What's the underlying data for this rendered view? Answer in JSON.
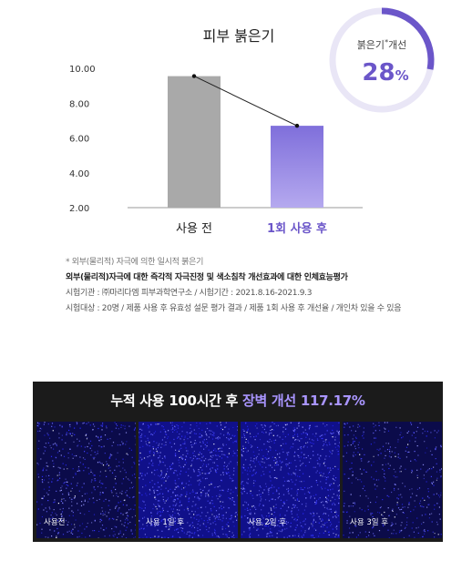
{
  "chart_data": {
    "type": "bar",
    "title": "피부 붉은기",
    "categories": [
      "사용 전",
      "1회 사용 후"
    ],
    "values": [
      9.55,
      6.7
    ],
    "ylim": [
      2.0,
      10.0
    ],
    "yticks": [
      "10.00",
      "8.00",
      "6.00",
      "4.00",
      "2.00"
    ],
    "ytick_values": [
      10,
      8,
      6,
      4,
      2
    ],
    "bar_colors": [
      "#a9a9a9",
      "#8d7ee0"
    ],
    "grid": false,
    "trend_line": true,
    "badge": {
      "label_main": "붉은기",
      "label_sup": "*",
      "label_tail": "개선",
      "value": "28",
      "unit": "%",
      "fraction": 0.28,
      "color": "#6b56c9"
    }
  },
  "notes": {
    "footnote": "* 외부(물리적) 자극에 의한 일시적 붉은기",
    "headline": "외부(물리적)자극에 대한 즉각적 자극진정 및 색소침착 개선효과에 대한 인체효능평가",
    "institution": "시험기관 : ㈜마리다엠 피부과학연구소 / 시험기간 : 2021.8.16-2021.9.3",
    "subjects": "시험대상 : 20명 / 제품 사용 후 유효성 설문 평가 결과 / 제품 1회 사용 후 개선율 / 개인차 있을 수 있음"
  },
  "panel": {
    "title_pre": "누적 사용 100시간 후 ",
    "title_hl": "장벽 개선 117.17%",
    "highlight_color": "#a995ff",
    "tiles": [
      {
        "label": "사용전"
      },
      {
        "label": "사용 1일 후"
      },
      {
        "label": "사용 2일 후"
      },
      {
        "label": "사용 3일 후"
      }
    ]
  }
}
